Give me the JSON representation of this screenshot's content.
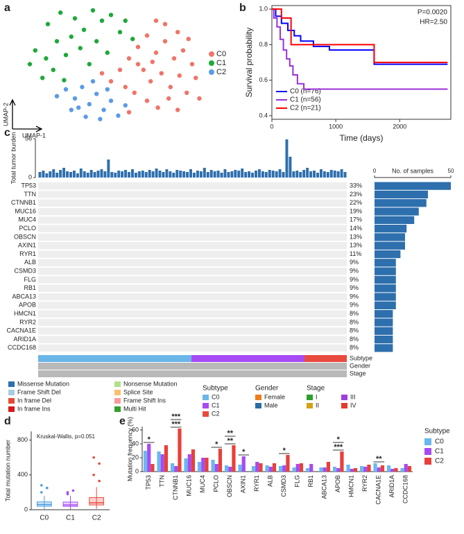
{
  "chart_data": [
    {
      "panel": "a",
      "type": "scatter",
      "xlabel": "UMAP-1",
      "ylabel": "UMAP-2",
      "xlim": [
        0,
        100
      ],
      "ylim": [
        0,
        100
      ],
      "series": [
        {
          "name": "C0",
          "color": "#f07468",
          "x": [
            60,
            65,
            70,
            75,
            80,
            85,
            90,
            95,
            68,
            72,
            78,
            83,
            88,
            92,
            97,
            63,
            70,
            76,
            82,
            87,
            55,
            50,
            58,
            45,
            65,
            73,
            80,
            87,
            75,
            93,
            99,
            60
          ],
          "y": [
            55,
            65,
            75,
            60,
            70,
            55,
            62,
            50,
            45,
            35,
            42,
            30,
            40,
            25,
            38,
            25,
            18,
            12,
            20,
            10,
            45,
            35,
            30,
            42,
            50,
            52,
            85,
            78,
            88,
            72,
            20,
            8
          ]
        },
        {
          "name": "C1",
          "color": "#1fa83a",
          "x": [
            15,
            22,
            30,
            35,
            40,
            45,
            50,
            55,
            20,
            28,
            8,
            14,
            25,
            33,
            5,
            18,
            42,
            48,
            38,
            58,
            62,
            12,
            24
          ],
          "y": [
            85,
            95,
            90,
            80,
            97,
            88,
            93,
            78,
            70,
            74,
            62,
            55,
            58,
            64,
            50,
            45,
            70,
            60,
            50,
            88,
            72,
            38,
            36
          ]
        },
        {
          "name": "C2",
          "color": "#5b9be6",
          "x": [
            25,
            30,
            34,
            38,
            42,
            46,
            50,
            54,
            58,
            28,
            36,
            44,
            48,
            40,
            32,
            20
          ],
          "y": [
            28,
            20,
            30,
            15,
            24,
            10,
            18,
            5,
            14,
            10,
            4,
            2,
            28,
            35,
            12,
            22
          ]
        }
      ]
    },
    {
      "panel": "b",
      "type": "line",
      "xlabel": "Time (days)",
      "ylabel": "Survival probability",
      "xlim": [
        0,
        2800
      ],
      "xticks": [
        0,
        1000,
        2000
      ],
      "ylim": [
        0.38,
        1.02
      ],
      "yticks": [
        0.4,
        0.6,
        0.8,
        {
          "value": 1,
          "label": "1.0"
        }
      ],
      "annotations": [
        "P=0.0020",
        "HR=2.50"
      ],
      "series": [
        {
          "name": "C0 (n=76)",
          "color": "#0000ff",
          "x": [
            0,
            60,
            60,
            150,
            150,
            250,
            250,
            350,
            350,
            450,
            450,
            650,
            650,
            900,
            900,
            1600,
            1600,
            2750
          ],
          "y": [
            1,
            1,
            0.96,
            0.96,
            0.92,
            0.92,
            0.88,
            0.88,
            0.85,
            0.85,
            0.82,
            0.82,
            0.79,
            0.79,
            0.77,
            0.77,
            0.69,
            0.69
          ]
        },
        {
          "name": "C1 (n=56)",
          "color": "#9b30d9",
          "x": [
            0,
            30,
            30,
            80,
            80,
            130,
            130,
            180,
            180,
            230,
            230,
            280,
            280,
            330,
            330,
            400,
            400,
            500,
            500,
            2750
          ],
          "y": [
            1,
            1,
            0.95,
            0.95,
            0.9,
            0.9,
            0.83,
            0.83,
            0.77,
            0.77,
            0.72,
            0.72,
            0.68,
            0.68,
            0.63,
            0.63,
            0.58,
            0.58,
            0.55,
            0.55
          ]
        },
        {
          "name": "C2 (n=21)",
          "color": "#ff0000",
          "x": [
            0,
            150,
            150,
            300,
            300,
            1600,
            1600,
            2750
          ],
          "y": [
            1,
            1,
            0.95,
            0.95,
            0.8,
            0.8,
            0.7,
            0.7
          ]
        }
      ]
    },
    {
      "panel": "c",
      "type": "bar",
      "ylabel": "Total tumor burden",
      "ylim": [
        0,
        56
      ],
      "yticks": [
        0,
        56
      ],
      "color": "#2e6fad",
      "values": [
        8,
        10,
        6,
        9,
        12,
        7,
        11,
        14,
        9,
        8,
        10,
        6,
        13,
        9,
        7,
        11,
        8,
        10,
        12,
        9,
        26,
        8,
        7,
        10,
        9,
        11,
        8,
        12,
        7,
        9,
        10,
        8,
        11,
        9,
        13,
        10,
        8,
        12,
        9,
        7,
        11,
        10,
        9,
        8,
        12,
        7,
        10,
        9,
        14,
        8,
        11,
        9,
        10,
        7,
        12,
        8,
        9,
        11,
        10,
        13,
        8,
        9,
        7,
        10,
        12,
        9,
        8,
        11,
        10,
        9,
        12,
        8,
        55,
        30,
        9,
        10,
        8,
        11,
        14,
        9,
        10,
        7,
        12,
        9,
        8,
        11,
        10,
        9,
        12,
        8
      ]
    },
    {
      "type": "oncoplot",
      "genes": [
        "TP53",
        "TTN",
        "CTNNB1",
        "MUC16",
        "MUC4",
        "PCLO",
        "OBSCN",
        "AXIN1",
        "RYR1",
        "ALB",
        "CSMD3",
        "FLG",
        "RB1",
        "ABCA13",
        "APOB",
        "HMCN1",
        "RYR2",
        "CACNA1E",
        "ARID1A",
        "CCDC168"
      ],
      "values": [
        33,
        23,
        22,
        19,
        17,
        14,
        13,
        13,
        11,
        9,
        9,
        9,
        9,
        9,
        9,
        8,
        8,
        8,
        8,
        8
      ],
      "value_labels": [
        "33%",
        "23%",
        "22%",
        "19%",
        "17%",
        "14%",
        "13%",
        "13%",
        "11%",
        "9%",
        "9%",
        "9%",
        "9%",
        "9%",
        "9%",
        "8%",
        "8%",
        "8%",
        "8%",
        "8%"
      ],
      "counts": [
        50,
        35,
        34,
        29,
        26,
        21,
        20,
        20,
        17,
        14,
        14,
        14,
        14,
        14,
        14,
        12,
        12,
        12,
        12,
        12
      ],
      "xlabel": "No. of samples",
      "xlim": [
        0,
        50
      ],
      "xticks": [
        0,
        50
      ],
      "bar_color": "#2e6fad",
      "tracks": [
        {
          "name": "Subtype",
          "values": [
            76,
            56,
            21
          ]
        },
        {
          "name": "Gender"
        },
        {
          "name": "Stage"
        }
      ],
      "legend": [
        {
          "name": "Missense Mutation",
          "color": "#2e6fad"
        },
        {
          "name": "Frame Shift Del",
          "color": "#a6cee3"
        },
        {
          "name": "In frame Del",
          "color": "#e34a33"
        },
        {
          "name": "In frame Ins",
          "color": "#d7191c"
        },
        {
          "name": "Nonsense Mutation",
          "color": "#b2df8a"
        },
        {
          "name": "Splice Site",
          "color": "#fdbf6f"
        },
        {
          "name": "Frame Shift Ins",
          "color": "#fb9a99"
        },
        {
          "name": "Multi Hit",
          "color": "#33a02c"
        }
      ],
      "legend_groups": [
        {
          "title": "Subtype",
          "items": [
            {
              "name": "C0",
              "color": "#6bb6e8"
            },
            {
              "name": "C1",
              "color": "#a64bf4"
            },
            {
              "name": "C2",
              "color": "#e84a3d"
            }
          ]
        },
        {
          "title": "Gender",
          "items": [
            {
              "name": "Female",
              "color": "#ee7d1c"
            },
            {
              "name": "Male",
              "color": "#2a6ca3"
            }
          ]
        },
        {
          "title": "Stage",
          "items": [
            {
              "name": "I",
              "color": "#2ca02c"
            },
            {
              "name": "II",
              "color": "#d4a017"
            },
            {
              "name": "III",
              "color": "#9c3fe0"
            },
            {
              "name": "IV",
              "color": "#e23b2c"
            }
          ]
        }
      ]
    },
    {
      "panel": "d",
      "type": "box",
      "ylabel": "Total mutation number",
      "annotation": "Kruskal-Wallis, p=0.051",
      "categories": [
        "C0",
        "C1",
        "C2"
      ],
      "colors": [
        "#4a9be0",
        "#a64bf4",
        "#e84a3d"
      ],
      "ylim": [
        0,
        900
      ],
      "yticks": [
        0,
        400,
        800
      ],
      "whisker_low": [
        5,
        5,
        10
      ],
      "q1": [
        40,
        38,
        55
      ],
      "median": [
        60,
        55,
        80
      ],
      "q3": [
        90,
        88,
        140
      ],
      "whisker_high": [
        160,
        160,
        260
      ],
      "outliers": [
        [
          280,
          250,
          200
        ],
        [
          200,
          220,
          180
        ],
        [
          600,
          530,
          400,
          330
        ]
      ]
    },
    {
      "panel": "e",
      "type": "groupedbar",
      "ylabel": "Mutation frequency (%)",
      "ylim": [
        0,
        65
      ],
      "yticks": [
        0,
        20,
        40,
        60
      ],
      "legend_title": "Subtype",
      "categories": [
        "TP53",
        "TTN",
        "CTNNB1",
        "MUC16",
        "MUC4",
        "PCLO",
        "OBSCN",
        "AXIN1",
        "RYR1",
        "ALB",
        "CSMD3",
        "FLG",
        "RB1",
        "ABCA13",
        "APOB",
        "HMCN1",
        "RYR2",
        "CACNA1E",
        "ARID1A",
        "CCDC168"
      ],
      "series": [
        {
          "name": "C0",
          "color": "#6ab8ee",
          "values": [
            30,
            29,
            12,
            19,
            14,
            17,
            9,
            10,
            8,
            9,
            8,
            6,
            5,
            6,
            7,
            10,
            8,
            12,
            9,
            5
          ]
        },
        {
          "name": "C1",
          "color": "#a64bf4",
          "values": [
            40,
            25,
            8,
            25,
            20,
            11,
            7,
            22,
            14,
            7,
            9,
            11,
            11,
            6,
            5,
            4,
            7,
            6,
            4,
            11
          ]
        },
        {
          "name": "C2",
          "color": "#e8403a",
          "values": [
            11,
            38,
            62,
            32,
            20,
            33,
            38,
            0,
            12,
            12,
            24,
            12,
            0,
            14,
            29,
            5,
            10,
            9,
            5,
            8
          ]
        }
      ],
      "annotations": [
        {
          "category": "TP53",
          "text": "*"
        },
        {
          "category": "CTNNB1",
          "text": "***"
        },
        {
          "category": "CTNNB1",
          "text": "***"
        },
        {
          "category": "PCLO",
          "text": "*"
        },
        {
          "category": "OBSCN",
          "text": "**"
        },
        {
          "category": "OBSCN",
          "text": "**"
        },
        {
          "category": "AXIN1",
          "text": "*"
        },
        {
          "category": "CSMD3",
          "text": "*"
        },
        {
          "category": "APOB",
          "text": "***"
        },
        {
          "category": "APOB",
          "text": "*"
        },
        {
          "category": "CACNA1E",
          "text": "**"
        }
      ]
    }
  ]
}
